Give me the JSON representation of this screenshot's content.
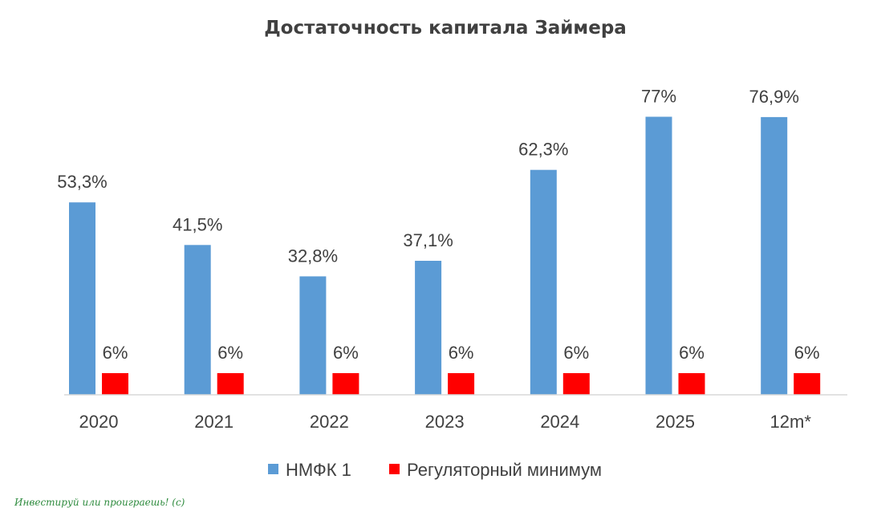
{
  "chart_data": {
    "type": "bar",
    "title": "Достаточность капитала Займера",
    "xlabel": "",
    "ylabel": "",
    "categories": [
      "2020",
      "2021",
      "2022",
      "2023",
      "2024",
      "2025",
      "12m*"
    ],
    "series": [
      {
        "name": "НМФК 1",
        "values": [
          53.3,
          41.5,
          32.8,
          37.1,
          62.3,
          77,
          76.9
        ],
        "labels": [
          "53,3%",
          "41,5%",
          "32,8%",
          "37,1%",
          "62,3%",
          "77%",
          "76,9%"
        ],
        "color": "#5b9bd5"
      },
      {
        "name": "Регуляторный минимум",
        "values": [
          6,
          6,
          6,
          6,
          6,
          6,
          6
        ],
        "labels": [
          "6%",
          "6%",
          "6%",
          "6%",
          "6%",
          "6%",
          "6%"
        ],
        "color": "#ff0000"
      }
    ],
    "ylim": [
      0,
      100
    ],
    "grid": false,
    "legend": "bottom-center"
  },
  "watermark": "Инвестируй или проиграешь! (с)"
}
